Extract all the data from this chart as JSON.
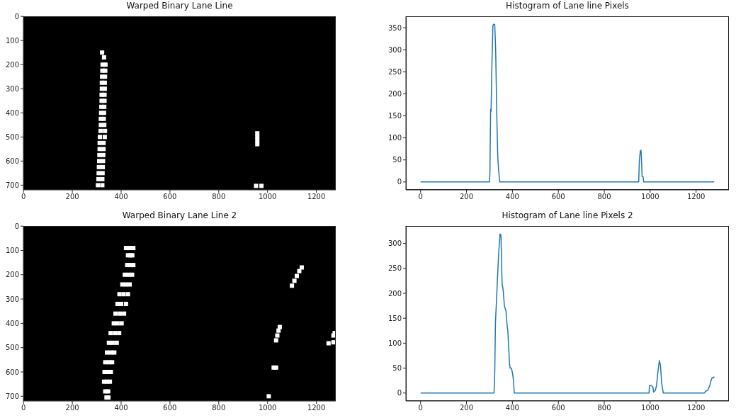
{
  "chart_data": [
    {
      "type": "scatter",
      "title": "Warped Binary Lane Line",
      "marker": "square",
      "x": [
        322,
        330,
        324,
        336,
        323,
        335,
        322,
        334,
        321,
        333,
        321,
        333,
        320,
        332,
        320,
        332,
        319,
        331,
        318,
        330,
        317,
        329,
        317,
        331,
        316,
        334,
        313,
        333,
        312,
        328,
        312,
        328,
        311,
        327,
        310,
        326,
        309,
        325,
        308,
        324,
        307,
        323,
        305,
        323,
        958,
        958,
        958,
        958,
        953,
        975
      ],
      "series": [
        {
          "color": "#ffffff",
          "values": [
            150,
            170,
            200,
            200,
            225,
            225,
            250,
            250,
            275,
            275,
            300,
            300,
            325,
            325,
            350,
            350,
            375,
            375,
            400,
            400,
            425,
            425,
            450,
            450,
            475,
            475,
            500,
            500,
            525,
            525,
            550,
            550,
            575,
            575,
            600,
            600,
            625,
            625,
            650,
            650,
            675,
            675,
            700,
            700,
            485,
            500,
            515,
            530,
            703,
            703
          ]
        }
      ],
      "xlim": [
        -0.5,
        1279.5
      ],
      "ylim": [
        719.5,
        -0.5
      ],
      "xticks": [
        0,
        200,
        400,
        600,
        800,
        1000,
        1200
      ],
      "yticks": [
        0,
        100,
        200,
        300,
        400,
        500,
        600,
        700
      ]
    },
    {
      "type": "line",
      "title": "Histogram of Lane line Pixels",
      "x": [
        0,
        300,
        302,
        305,
        307,
        310,
        315,
        318,
        323,
        327,
        332,
        336,
        340,
        345,
        950,
        953,
        957,
        960,
        963,
        965,
        969,
        972,
        1279
      ],
      "series": [
        {
          "color": "#1f77b4",
          "values": [
            0,
            0,
            20,
            165,
            160,
            250,
            355,
            358,
            357,
            300,
            150,
            60,
            25,
            0,
            0,
            50,
            70,
            72,
            40,
            12,
            12,
            0,
            0
          ]
        }
      ],
      "xlim": [
        -64,
        1343
      ],
      "ylim": [
        -18,
        376
      ],
      "xticks": [
        0,
        200,
        400,
        600,
        800,
        1000,
        1200
      ],
      "yticks": [
        0,
        50,
        100,
        150,
        200,
        250,
        300,
        350
      ]
    },
    {
      "type": "scatter",
      "title": "Warped Binary Lane Line 2",
      "marker": "square",
      "x": [
        420,
        435,
        450,
        428,
        438,
        446,
        425,
        438,
        450,
        415,
        430,
        445,
        405,
        420,
        435,
        393,
        410,
        428,
        385,
        400,
        420,
        377,
        395,
        412,
        370,
        385,
        402,
        357,
        375,
        392,
        350,
        365,
        382,
        342,
        358,
        372,
        335,
        350,
        363,
        332,
        345,
        358,
        330,
        342,
        354,
        335,
        347,
        340,
        348,
        1100,
        1110,
        1120,
        1130,
        1140,
        1035,
        1040,
        1045,
        1050,
        1025,
        1035,
        1005,
        1250,
        1270,
        1275,
        1270
      ],
      "series": [
        {
          "color": "#ffffff",
          "values": [
            90,
            90,
            90,
            120,
            120,
            120,
            160,
            160,
            160,
            200,
            200,
            200,
            240,
            240,
            240,
            280,
            280,
            280,
            320,
            320,
            320,
            360,
            360,
            360,
            400,
            400,
            400,
            440,
            440,
            440,
            480,
            480,
            480,
            520,
            520,
            520,
            560,
            560,
            560,
            600,
            600,
            600,
            640,
            640,
            640,
            680,
            680,
            705,
            705,
            245,
            225,
            205,
            185,
            170,
            470,
            450,
            430,
            415,
            582,
            582,
            700,
            482,
            478,
            440,
            450
          ]
        }
      ],
      "xlim": [
        -0.5,
        1279.5
      ],
      "ylim": [
        719.5,
        -0.5
      ],
      "xticks": [
        0,
        200,
        400,
        600,
        800,
        1000,
        1200
      ],
      "yticks": [
        0,
        100,
        200,
        300,
        400,
        500,
        600,
        700
      ]
    },
    {
      "type": "line",
      "title": "Histogram of Lane line Pixels 2",
      "x": [
        0,
        320,
        323,
        326,
        333,
        340,
        346,
        350,
        355,
        360,
        365,
        368,
        372,
        377,
        380,
        384,
        387,
        390,
        395,
        398,
        402,
        405,
        408,
        995,
        997,
        1005,
        1012,
        1015,
        1022,
        1028,
        1033,
        1040,
        1045,
        1050,
        1057,
        1237,
        1242,
        1250,
        1260,
        1265,
        1270,
        1275,
        1279
      ],
      "series": [
        {
          "color": "#1f77b4",
          "values": [
            0,
            0,
            40,
            140,
            210,
            280,
            319,
            317,
            220,
            205,
            175,
            170,
            165,
            135,
            125,
            90,
            60,
            50,
            50,
            45,
            35,
            22,
            0,
            0,
            15,
            15,
            12,
            2,
            5,
            15,
            40,
            65,
            55,
            20,
            0,
            0,
            4,
            5,
            15,
            25,
            31,
            30,
            33
          ]
        }
      ],
      "xlim": [
        -64,
        1343
      ],
      "ylim": [
        -16,
        335
      ],
      "xticks": [
        0,
        200,
        400,
        600,
        800,
        1000,
        1200
      ],
      "yticks": [
        0,
        50,
        100,
        150,
        200,
        250,
        300
      ]
    }
  ]
}
